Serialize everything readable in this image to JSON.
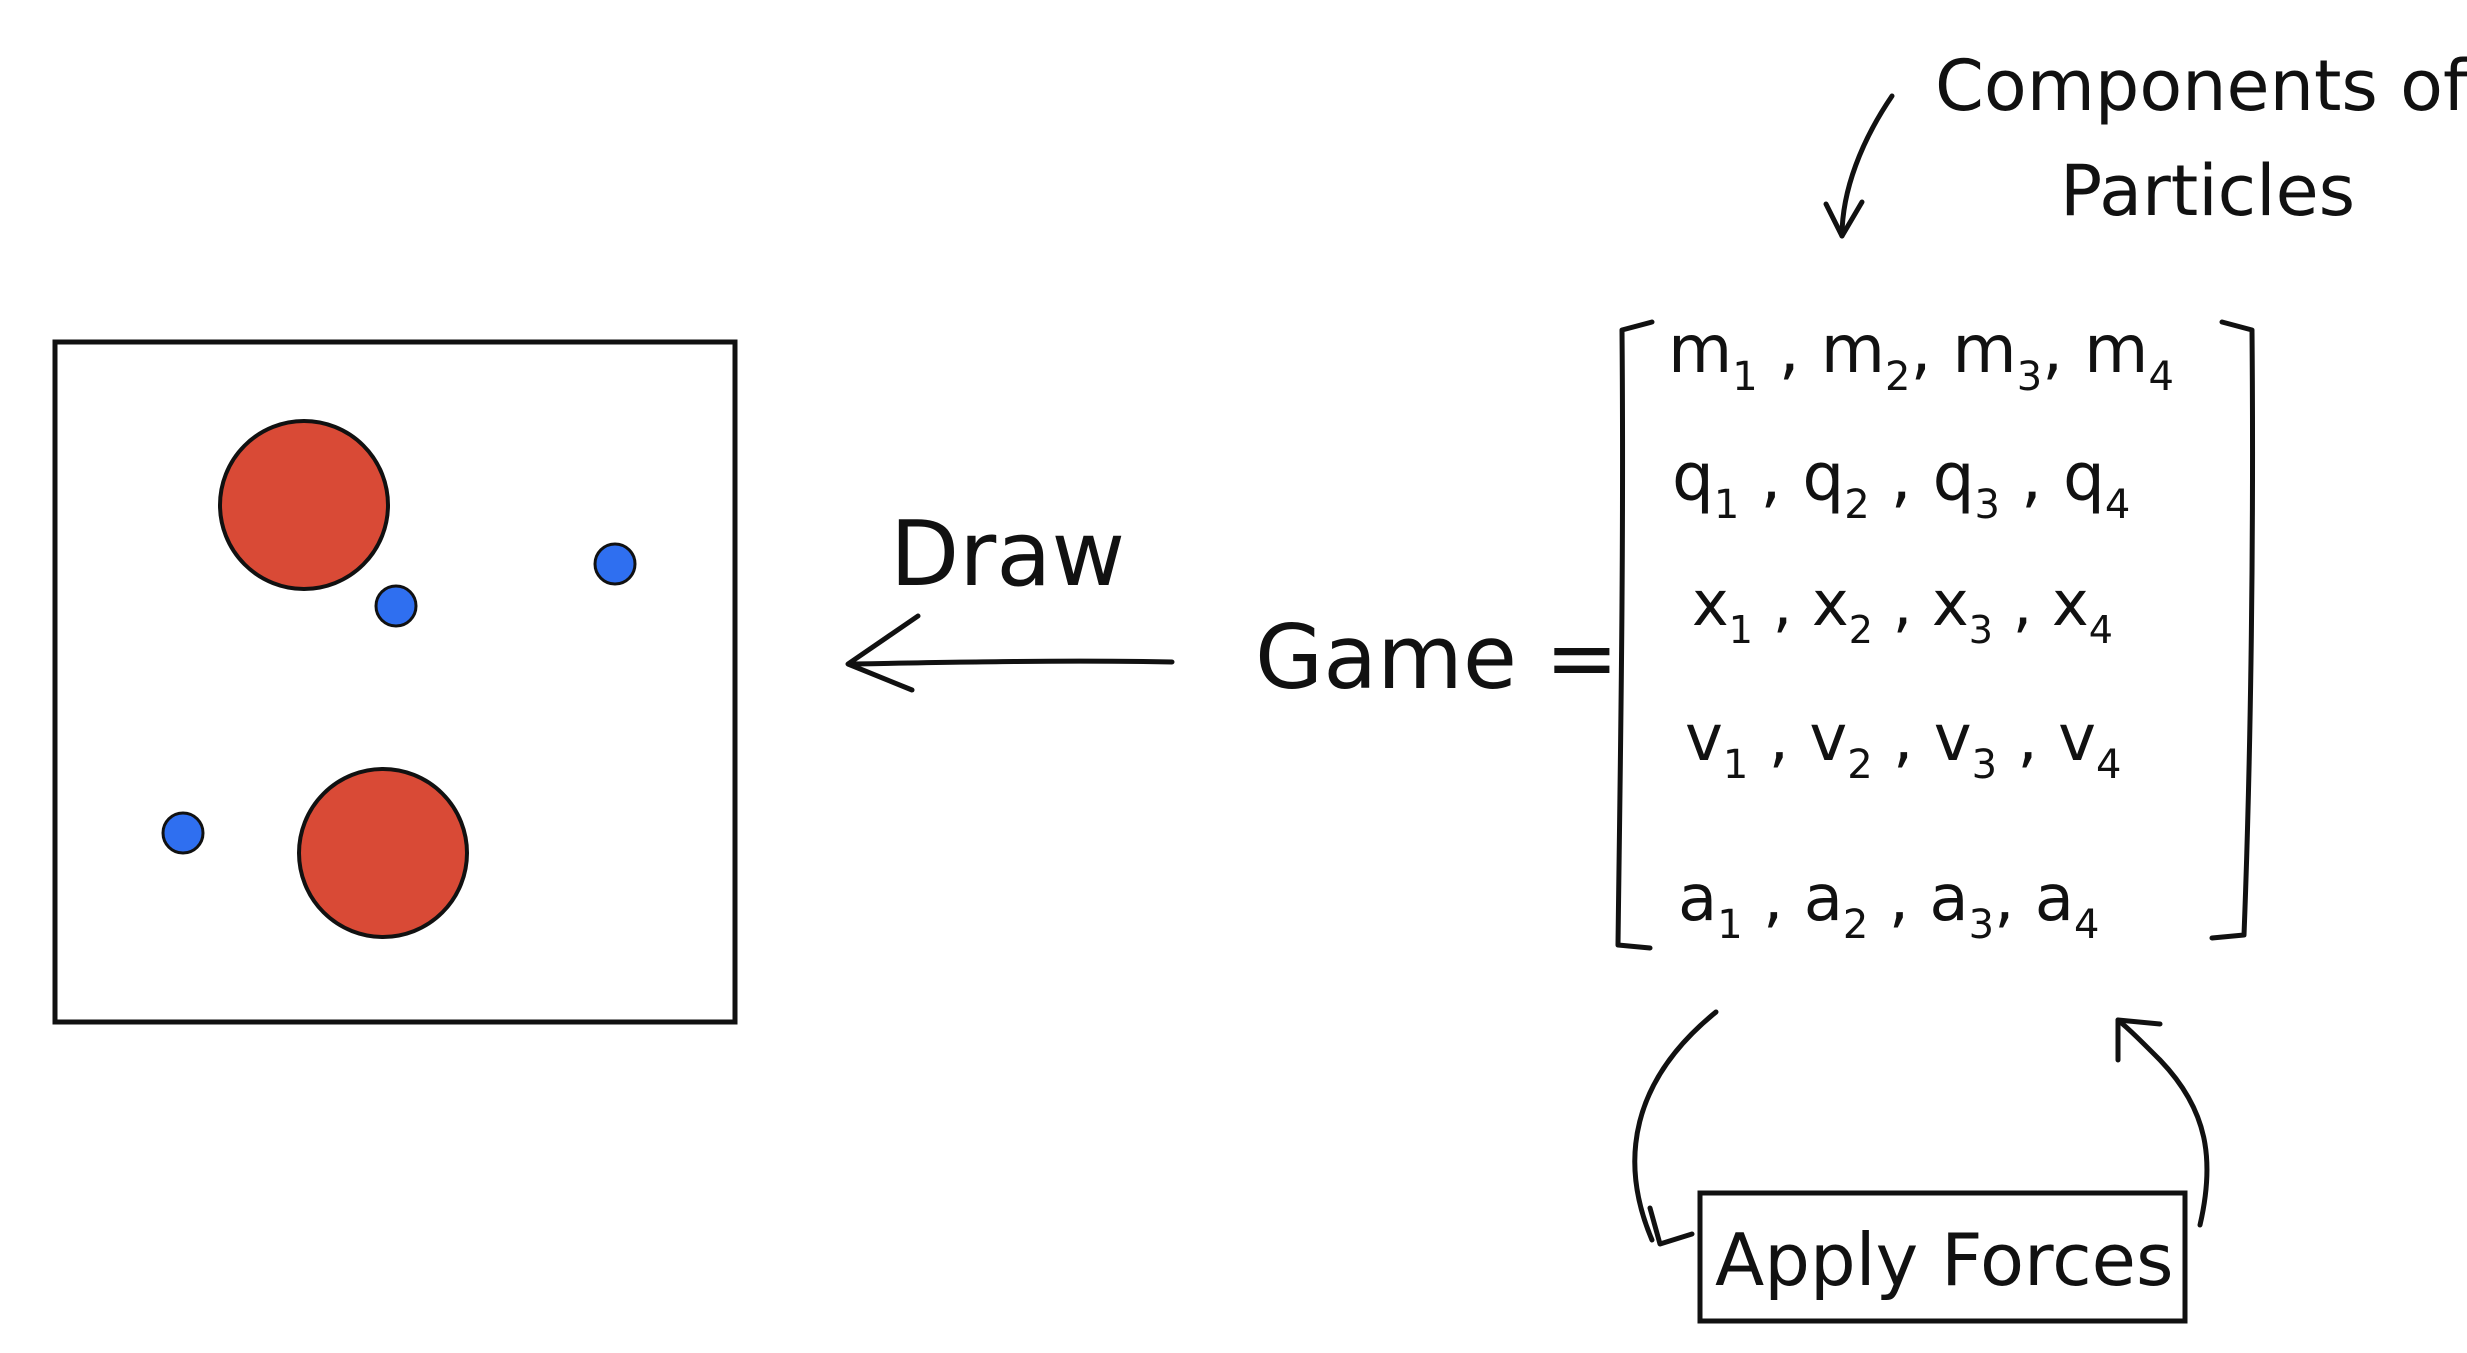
{
  "title_note": {
    "line1": "Components of",
    "line2": "Particles"
  },
  "draw_label": "Draw",
  "game_label": "Game =",
  "matrix_rows": [
    [
      "m",
      "1",
      "m",
      "2",
      "m",
      "3",
      "m",
      "4"
    ],
    [
      "q",
      "1",
      "q",
      "2",
      "q",
      "3",
      "q",
      "4"
    ],
    [
      "x",
      "1",
      "x",
      "2",
      "x",
      "3",
      "x",
      "4"
    ],
    [
      "v",
      "1",
      "v",
      "2",
      "v",
      "3",
      "v",
      "4"
    ],
    [
      "a",
      "1",
      "a",
      "2",
      "a",
      "3",
      "a",
      "4"
    ]
  ],
  "apply_forces_label": "Apply Forces",
  "colors": {
    "large_particle": "#D94A36",
    "small_particle": "#2F6FF0",
    "ink": "#111111"
  },
  "particles": {
    "large_count": 2,
    "small_count": 3
  }
}
